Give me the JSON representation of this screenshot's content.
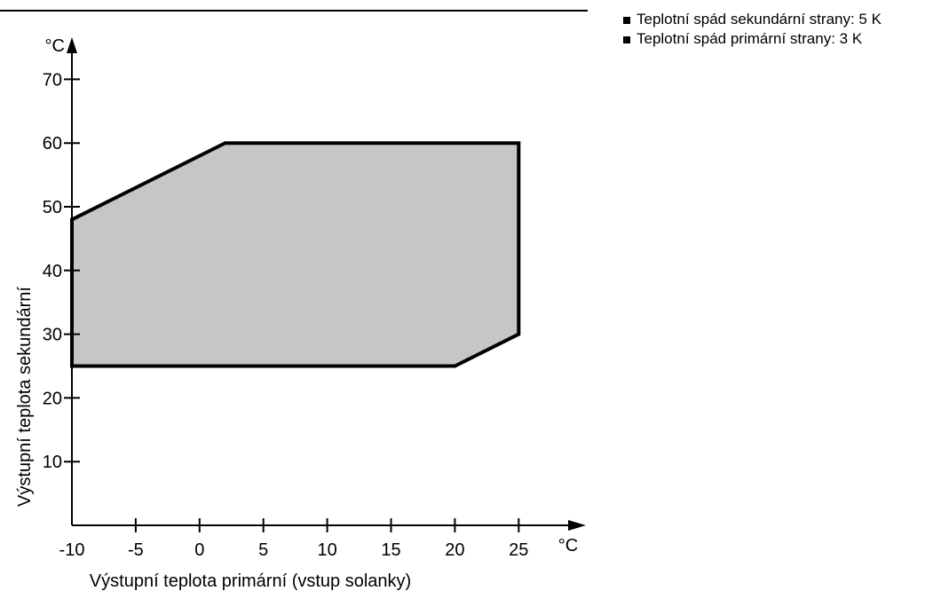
{
  "notes": [
    "Teplotní spád sekundární strany: 5 K",
    "Teplotní spád primární strany: 3 K"
  ],
  "chart_data": {
    "type": "area",
    "title": "",
    "xlabel": "Výstupní teplota primární (vstup solanky)",
    "ylabel": "Výstupní teplota sekundární",
    "x_unit": "°C",
    "y_unit": "°C",
    "xlim": [
      -10,
      30
    ],
    "ylim": [
      0,
      75
    ],
    "x_ticks": [
      -10,
      -5,
      0,
      5,
      10,
      15,
      20,
      25
    ],
    "y_ticks": [
      10,
      20,
      30,
      40,
      50,
      60,
      70
    ],
    "grid": false,
    "series": [
      {
        "points": [
          {
            "x": -10,
            "y": 25
          },
          {
            "x": -10,
            "y": 48
          },
          {
            "x": 2,
            "y": 60
          },
          {
            "x": 25,
            "y": 60
          },
          {
            "x": 25,
            "y": 30
          },
          {
            "x": 20,
            "y": 25
          }
        ],
        "fill": "#c6c6c6",
        "stroke": "#000000"
      }
    ]
  }
}
